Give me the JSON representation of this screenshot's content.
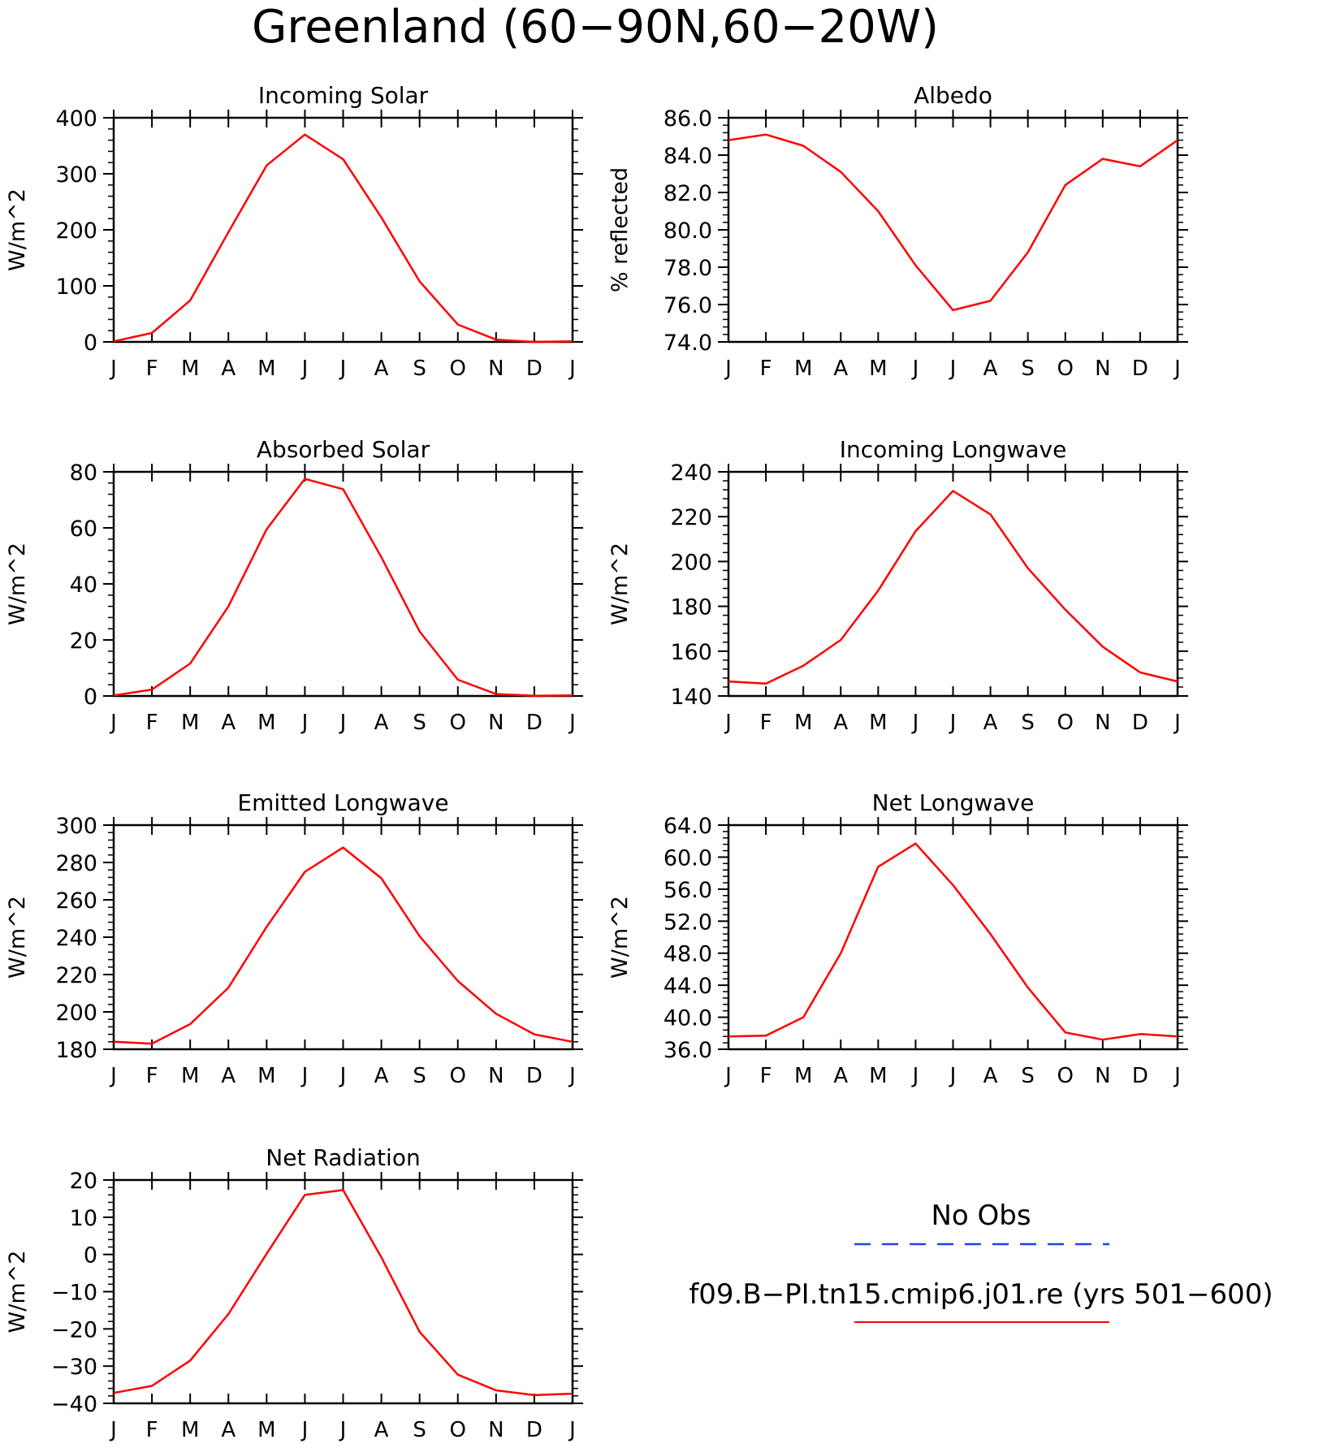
{
  "figure_title": "Greenland (60−90N,60−20W)",
  "legend": {
    "obs_label": "No Obs",
    "obs_color": "#1f3fff",
    "model_label": "f09.B−PI.tn15.cmip6.j01.re (yrs 501−600)",
    "model_color": "#ff0000"
  },
  "chart_data": [
    {
      "type": "line",
      "title": "Incoming Solar",
      "ylabel": "W/m^2",
      "categories": [
        "J",
        "F",
        "M",
        "A",
        "M",
        "J",
        "J",
        "A",
        "S",
        "O",
        "N",
        "D",
        "J"
      ],
      "ylim": [
        0,
        400
      ],
      "yticks": [
        0,
        100,
        200,
        300,
        400
      ],
      "yticklabels": [
        "0",
        "100",
        "200",
        "300",
        "400"
      ],
      "series": [
        {
          "name": "f09.B−PI.tn15.cmip6.j01.re (yrs 501−600)",
          "color": "#ff0000",
          "values": [
            1,
            16,
            74,
            196,
            315,
            370,
            326,
            222,
            108,
            31,
            4,
            0,
            1
          ]
        }
      ]
    },
    {
      "type": "line",
      "title": "Albedo",
      "ylabel": "% reflected",
      "categories": [
        "J",
        "F",
        "M",
        "A",
        "M",
        "J",
        "J",
        "A",
        "S",
        "O",
        "N",
        "D",
        "J"
      ],
      "ylim": [
        74,
        86
      ],
      "yticks": [
        74,
        76,
        78,
        80,
        82,
        84,
        86
      ],
      "yticklabels": [
        "74.0",
        "76.0",
        "78.0",
        "80.0",
        "82.0",
        "84.0",
        "86.0"
      ],
      "series": [
        {
          "name": "f09.B−PI.tn15.cmip6.j01.re (yrs 501−600)",
          "color": "#ff0000",
          "values": [
            84.8,
            85.1,
            84.5,
            83.1,
            81.0,
            78.1,
            75.7,
            76.2,
            78.8,
            82.4,
            83.8,
            83.4,
            84.8
          ]
        }
      ]
    },
    {
      "type": "line",
      "title": "Absorbed Solar",
      "ylabel": "W/m^2",
      "categories": [
        "J",
        "F",
        "M",
        "A",
        "M",
        "J",
        "J",
        "A",
        "S",
        "O",
        "N",
        "D",
        "J"
      ],
      "ylim": [
        0,
        80
      ],
      "yticks": [
        0,
        20,
        40,
        60,
        80
      ],
      "yticklabels": [
        "0",
        "20",
        "40",
        "60",
        "80"
      ],
      "series": [
        {
          "name": "f09.B−PI.tn15.cmip6.j01.re (yrs 501−600)",
          "color": "#ff0000",
          "values": [
            0.2,
            2.3,
            11.6,
            32,
            59.5,
            77.5,
            73.8,
            49.5,
            23,
            5.8,
            0.7,
            0.1,
            0.2
          ]
        }
      ]
    },
    {
      "type": "line",
      "title": "Incoming Longwave",
      "ylabel": "W/m^2",
      "categories": [
        "J",
        "F",
        "M",
        "A",
        "M",
        "J",
        "J",
        "A",
        "S",
        "O",
        "N",
        "D",
        "J"
      ],
      "ylim": [
        140,
        240
      ],
      "yticks": [
        140,
        160,
        180,
        200,
        220,
        240
      ],
      "yticklabels": [
        "140",
        "160",
        "180",
        "200",
        "220",
        "240"
      ],
      "series": [
        {
          "name": "f09.B−PI.tn15.cmip6.j01.re (yrs 501−600)",
          "color": "#ff0000",
          "values": [
            146.5,
            145.5,
            153.5,
            165,
            187,
            213.5,
            231.5,
            221,
            197,
            178.5,
            162,
            150.5,
            146.5
          ]
        }
      ]
    },
    {
      "type": "line",
      "title": "Emitted Longwave",
      "ylabel": "W/m^2",
      "categories": [
        "J",
        "F",
        "M",
        "A",
        "M",
        "J",
        "J",
        "A",
        "S",
        "O",
        "N",
        "D",
        "J"
      ],
      "ylim": [
        180,
        300
      ],
      "yticks": [
        180,
        200,
        220,
        240,
        260,
        280,
        300
      ],
      "yticklabels": [
        "180",
        "200",
        "220",
        "240",
        "260",
        "280",
        "300"
      ],
      "series": [
        {
          "name": "f09.B−PI.tn15.cmip6.j01.re (yrs 501−600)",
          "color": "#ff0000",
          "values": [
            184,
            183,
            193.5,
            213,
            245.5,
            275,
            288,
            271.5,
            240.5,
            216.5,
            199,
            188,
            184
          ]
        }
      ]
    },
    {
      "type": "line",
      "title": "Net Longwave",
      "ylabel": "W/m^2",
      "categories": [
        "J",
        "F",
        "M",
        "A",
        "M",
        "J",
        "J",
        "A",
        "S",
        "O",
        "N",
        "D",
        "J"
      ],
      "ylim": [
        36,
        64
      ],
      "yticks": [
        36,
        40,
        44,
        48,
        52,
        56,
        60,
        64
      ],
      "yticklabels": [
        "36.0",
        "40.0",
        "44.0",
        "48.0",
        "52.0",
        "56.0",
        "60.0",
        "64.0"
      ],
      "series": [
        {
          "name": "f09.B−PI.tn15.cmip6.j01.re (yrs 501−600)",
          "color": "#ff0000",
          "values": [
            37.6,
            37.7,
            40.0,
            48.0,
            58.8,
            61.7,
            56.5,
            50.4,
            43.7,
            38.1,
            37.2,
            37.9,
            37.6
          ]
        }
      ]
    },
    {
      "type": "line",
      "title": "Net Radiation",
      "ylabel": "W/m^2",
      "categories": [
        "J",
        "F",
        "M",
        "A",
        "M",
        "J",
        "J",
        "A",
        "S",
        "O",
        "N",
        "D",
        "J"
      ],
      "ylim": [
        -40,
        20
      ],
      "yticks": [
        -40,
        -30,
        -20,
        -10,
        0,
        10,
        20
      ],
      "yticklabels": [
        "−40",
        "−30",
        "−20",
        "−10",
        "0",
        "10",
        "20"
      ],
      "series": [
        {
          "name": "f09.B−PI.tn15.cmip6.j01.re (yrs 501−600)",
          "color": "#ff0000",
          "values": [
            -37.2,
            -35.3,
            -28.5,
            -16,
            0.2,
            16,
            17.3,
            -0.8,
            -20.8,
            -32.3,
            -36.5,
            -37.8,
            -37.4
          ]
        }
      ]
    }
  ]
}
